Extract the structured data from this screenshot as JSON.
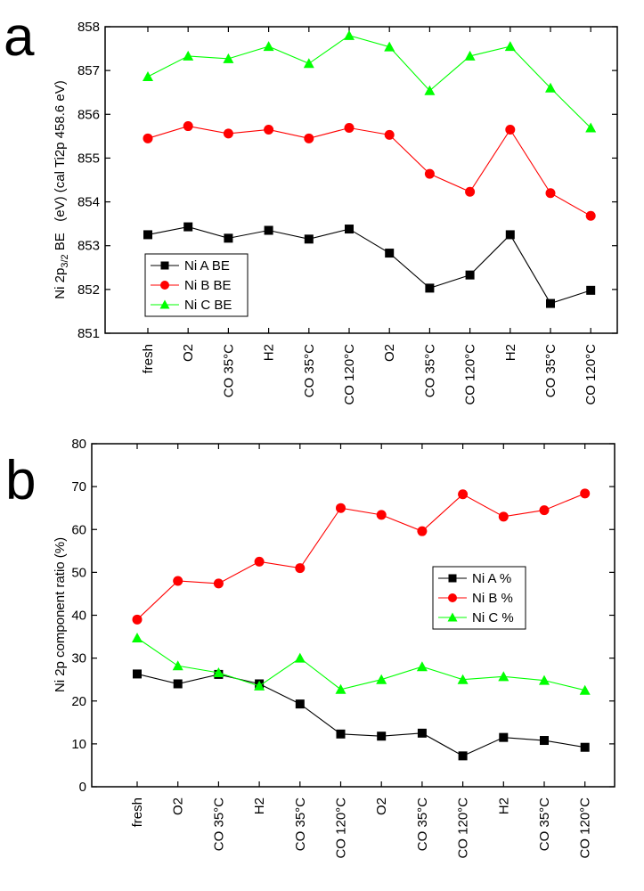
{
  "chart_data": [
    {
      "panel_label": "a",
      "type": "line",
      "categories": [
        "fresh",
        "O2",
        "CO 35°C",
        "H2",
        "CO 35°C",
        "CO 120°C",
        "O2",
        "CO 35°C",
        "CO 120°C",
        "H2",
        "CO 35°C",
        "CO 120°C"
      ],
      "ylabel_main": "Ni 2p",
      "ylabel_sub": "3/2",
      "ylabel_rest": " BE   (eV) (cal Ti2p 458.6 eV)",
      "ylim": [
        851,
        858
      ],
      "yticks": [
        "851",
        "852",
        "853",
        "854",
        "855",
        "856",
        "857",
        "858"
      ],
      "legend_position": "lower-left",
      "series": [
        {
          "name": "Ni A BE",
          "color": "#000000",
          "marker": "square",
          "values": [
            853.25,
            853.43,
            853.17,
            853.35,
            853.15,
            853.38,
            852.83,
            852.03,
            852.33,
            853.25,
            851.68,
            851.98
          ]
        },
        {
          "name": "Ni B BE",
          "color": "#ff0000",
          "marker": "circle",
          "values": [
            855.45,
            855.73,
            855.56,
            855.65,
            855.45,
            855.69,
            855.53,
            854.64,
            854.23,
            855.65,
            854.2,
            853.68
          ]
        },
        {
          "name": "Ni C BE",
          "color": "#00ff00",
          "marker": "triangle",
          "values": [
            856.86,
            857.33,
            857.27,
            857.55,
            857.16,
            857.8,
            857.54,
            856.54,
            857.33,
            857.55,
            856.6,
            855.69
          ]
        }
      ]
    },
    {
      "panel_label": "b",
      "type": "line",
      "categories": [
        "fresh",
        "O2",
        "CO 35°C",
        "H2",
        "CO 35°C",
        "CO 120°C",
        "O2",
        "CO 35°C",
        "CO 120°C",
        "H2",
        "CO 35°C",
        "CO 120°C"
      ],
      "ylabel": "Ni 2p component ratio   (%)",
      "ylim": [
        0,
        80
      ],
      "yticks": [
        "0",
        "10",
        "20",
        "30",
        "40",
        "50",
        "60",
        "70",
        "80"
      ],
      "legend_position": "center-right",
      "series": [
        {
          "name": "Ni A %",
          "color": "#000000",
          "marker": "square",
          "values": [
            26.3,
            24.0,
            26.2,
            24.0,
            19.3,
            12.3,
            11.8,
            12.5,
            7.2,
            11.5,
            10.8,
            9.2
          ]
        },
        {
          "name": "Ni B %",
          "color": "#ff0000",
          "marker": "circle",
          "values": [
            39.0,
            48.0,
            47.4,
            52.5,
            51.0,
            65.0,
            63.4,
            59.6,
            68.2,
            63.0,
            64.5,
            68.4
          ]
        },
        {
          "name": "Ni C %",
          "color": "#00ff00",
          "marker": "triangle",
          "values": [
            34.7,
            28.2,
            26.6,
            23.5,
            30.0,
            22.7,
            25.0,
            28.0,
            25.0,
            25.7,
            24.8,
            22.5
          ]
        }
      ]
    }
  ]
}
